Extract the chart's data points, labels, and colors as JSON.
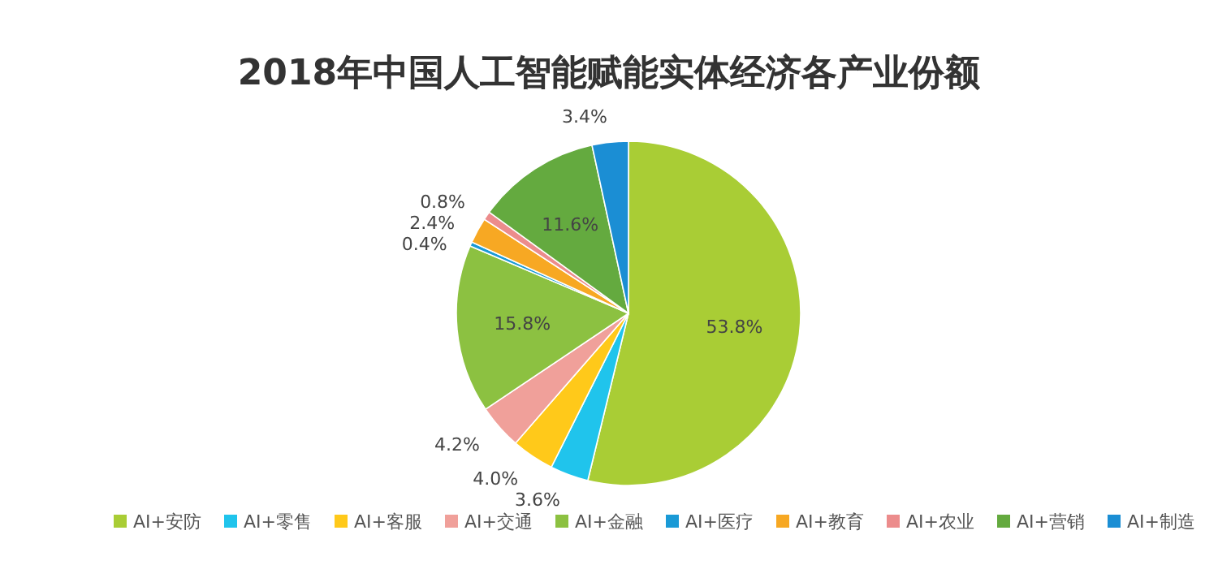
{
  "chart_data": {
    "type": "pie",
    "title": "2018年中国人工智能赋能实体经济各产业份额",
    "categories": [
      "AI+安防",
      "AI+零售",
      "AI+客服",
      "AI+交通",
      "AI+金融",
      "AI+医疗",
      "AI+教育",
      "AI+农业",
      "AI+营销",
      "AI+制造"
    ],
    "values": [
      53.8,
      3.6,
      4.0,
      4.2,
      15.8,
      0.4,
      2.4,
      0.8,
      11.6,
      3.4
    ],
    "value_labels": [
      "53.8%",
      "3.6%",
      "4.0%",
      "4.2%",
      "15.8%",
      "0.4%",
      "2.4%",
      "0.8%",
      "11.6%",
      "3.4%"
    ],
    "colors": [
      "#a9cd35",
      "#20c4ec",
      "#ffc91a",
      "#f0a09a",
      "#8cc141",
      "#1a9ad6",
      "#f7a823",
      "#ec8c8c",
      "#64aa3f",
      "#1b8ed4"
    ],
    "legend": "bottom"
  }
}
